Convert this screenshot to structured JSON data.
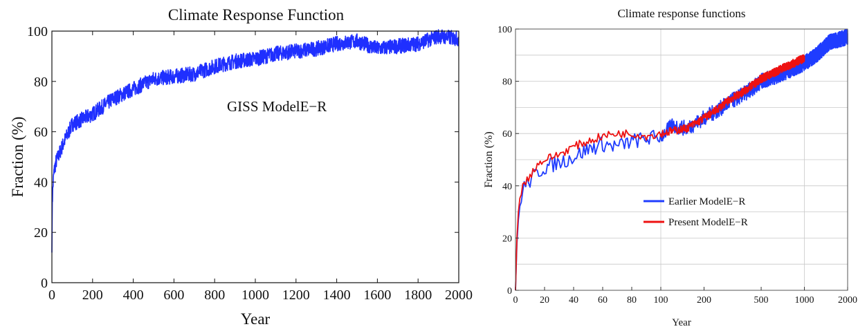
{
  "chart_data": [
    {
      "type": "line",
      "title": "Climate Response Function",
      "xlabel": "Year",
      "ylabel": "Fraction (%)",
      "xlim": [
        0,
        2000
      ],
      "ylim": [
        0,
        100
      ],
      "xticks": [
        0,
        200,
        400,
        600,
        800,
        1000,
        1200,
        1400,
        1600,
        1800,
        2000
      ],
      "yticks": [
        0,
        20,
        40,
        60,
        80,
        100
      ],
      "annotation": "GISS ModelE−R",
      "grid": false,
      "x_scale": "linear",
      "series": [
        {
          "color": "#1f2fff",
          "noise_amplitude": 3,
          "x": [
            0,
            2,
            5,
            10,
            20,
            40,
            60,
            100,
            150,
            200,
            300,
            400,
            500,
            600,
            700,
            800,
            900,
            1000,
            1100,
            1200,
            1300,
            1400,
            1500,
            1600,
            1700,
            1800,
            1900,
            2000
          ],
          "y": [
            12,
            32,
            38,
            44,
            48,
            52,
            56,
            63,
            65,
            67,
            73,
            77,
            81,
            82,
            83,
            86,
            88,
            89,
            91,
            92,
            93,
            95,
            96,
            93,
            94,
            95,
            98,
            97
          ]
        }
      ]
    },
    {
      "type": "line",
      "title": "Climate response functions",
      "xlabel": "Year",
      "ylabel": "Fraction (%)",
      "ylim": [
        0,
        100
      ],
      "x_scale": "piecewise (linear 0–100, log 100–2000)",
      "xticks": [
        "0",
        "20",
        "40",
        "60",
        "80",
        "100",
        "200",
        "500",
        "1000",
        "2000"
      ],
      "xtick_values": [
        0,
        20,
        40,
        60,
        80,
        100,
        200,
        500,
        1000,
        2000
      ],
      "yticks": [
        0,
        20,
        40,
        60,
        80,
        100
      ],
      "grid": true,
      "legend_position": "center-right",
      "series": [
        {
          "name": "Earlier ModelE−R",
          "color": "#1f3cff",
          "noise_amplitude": 3,
          "x": [
            0,
            1,
            2,
            4,
            6,
            10,
            15,
            20,
            30,
            40,
            50,
            60,
            70,
            80,
            90,
            100,
            120,
            150,
            200,
            300,
            500,
            700,
            1000,
            1200,
            1500,
            2000
          ],
          "y": [
            0,
            18,
            27,
            36,
            40,
            42,
            45,
            47,
            49,
            51,
            54,
            56,
            55,
            57,
            58,
            59,
            63,
            62,
            66,
            72,
            80,
            83,
            87,
            90,
            95,
            97
          ]
        },
        {
          "name": "Present ModelE−R",
          "color": "#ee1111",
          "noise_amplitude": 1.6,
          "x": [
            0,
            1,
            2,
            4,
            6,
            10,
            15,
            20,
            30,
            40,
            50,
            60,
            70,
            80,
            90,
            100,
            120,
            150,
            200,
            300,
            500,
            700,
            1000
          ],
          "y": [
            0,
            20,
            30,
            38,
            41,
            44,
            48,
            50,
            52,
            55,
            57,
            59,
            60,
            60,
            59,
            60,
            61,
            62,
            66,
            73,
            81,
            85,
            89
          ]
        }
      ]
    }
  ]
}
